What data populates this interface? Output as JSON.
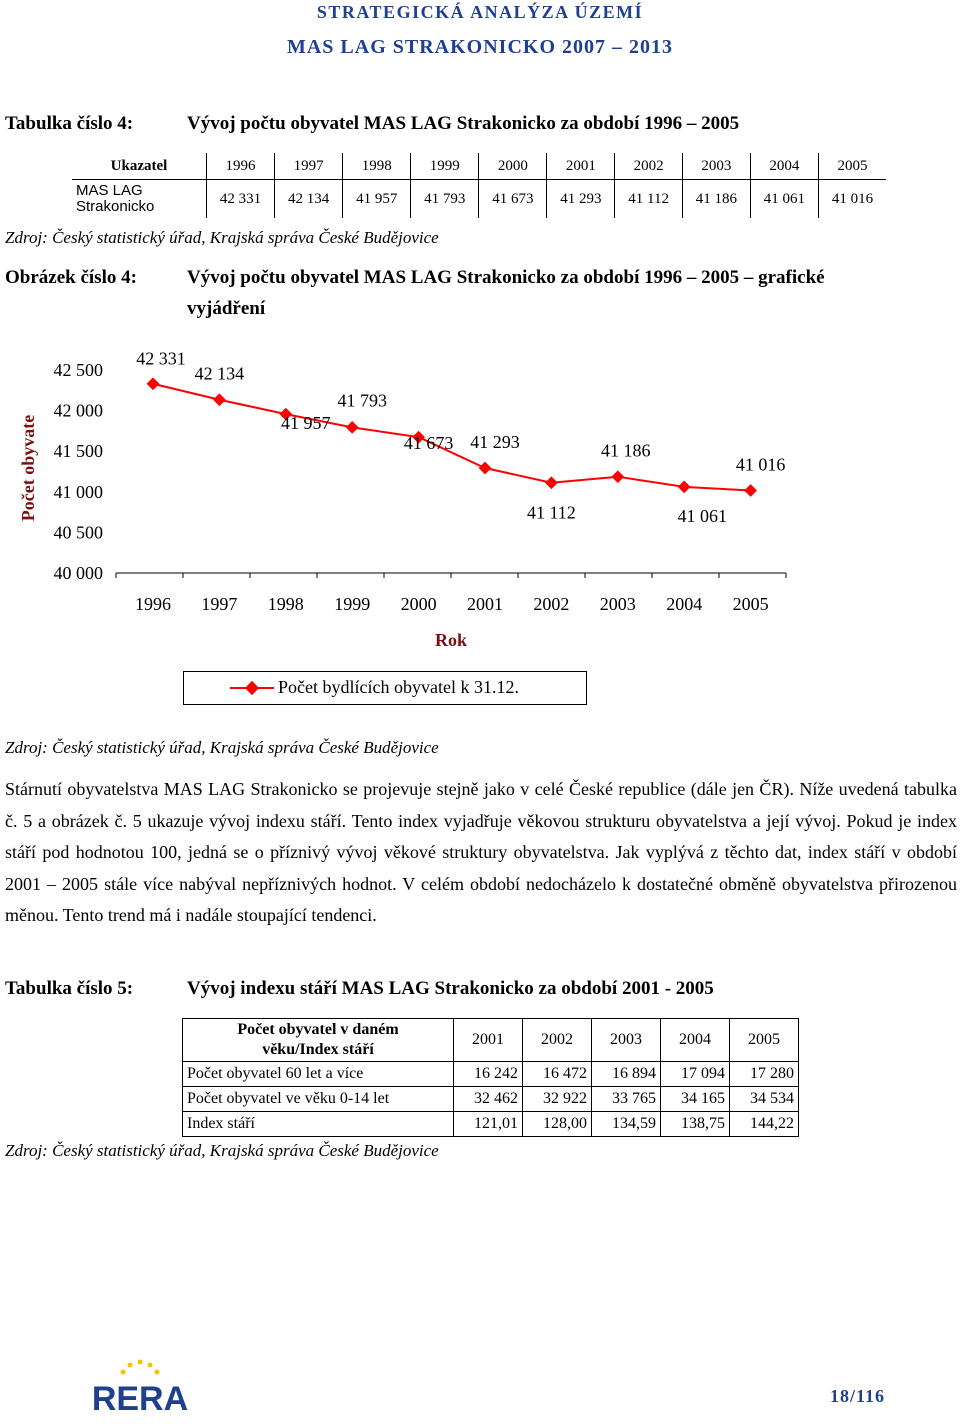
{
  "header": {
    "line1": "STRATEGICKÁ ANALÝZA ÚZEMÍ",
    "line2": "MAS LAG STRAKONICKO 2007 – 2013"
  },
  "table4": {
    "label": "Tabulka číslo 4:",
    "title": "Vývoj počtu obyvatel MAS LAG Strakonicko za období 1996 – 2005",
    "header_label": "Ukazatel",
    "years": [
      "1996",
      "1997",
      "1998",
      "1999",
      "2000",
      "2001",
      "2002",
      "2003",
      "2004",
      "2005"
    ],
    "row_label": "MAS LAG Strakonicko",
    "values": [
      "42 331",
      "42 134",
      "41 957",
      "41 793",
      "41 673",
      "41 293",
      "41 112",
      "41 186",
      "41 061",
      "41 016"
    ],
    "source": "Zdroj: Český statistický úřad, Krajská správa České Budějovice"
  },
  "figure4": {
    "label": "Obrázek číslo 4:",
    "title_line1": "Vývoj počtu obyvatel MAS LAG Strakonicko za období 1996 – 2005 – grafické",
    "title_line2": "vyjádření",
    "source": "Zdroj: Český statistický úřad, Krajská správa České Budějovice"
  },
  "chart_data": {
    "type": "line",
    "categories": [
      "1996",
      "1997",
      "1998",
      "1999",
      "2000",
      "2001",
      "2002",
      "2003",
      "2004",
      "2005"
    ],
    "series": [
      {
        "name": "Počet bydlících obyvatel k 31.12.",
        "values": [
          42331,
          42134,
          41957,
          41793,
          41673,
          41293,
          41112,
          41186,
          41061,
          41016
        ],
        "labels": [
          "42 331",
          "42 134",
          "41 957",
          "41 793",
          "41 673",
          "41 293",
          "41 112",
          "41 186",
          "41 061",
          "41 016"
        ],
        "color": "#ff0000"
      }
    ],
    "ylabel": "Počet obyvate",
    "xlabel": "Rok",
    "ylim": [
      40000,
      42500
    ],
    "yticks": [
      42500,
      42000,
      41500,
      41000,
      40500,
      40000
    ],
    "ytick_labels": [
      "42 500",
      "42 000",
      "41 500",
      "41 000",
      "40 500",
      "40 000"
    ],
    "legend_position": "bottom",
    "grid": false
  },
  "paragraph": "Stárnutí obyvatelstva MAS LAG Strakonicko se projevuje stejně jako v celé České republice (dále jen ČR). Níže uvedená tabulka č. 5 a obrázek č. 5 ukazuje vývoj indexu stáří. Tento index vyjadřuje věkovou strukturu obyvatelstva a její vývoj. Pokud je index stáří pod hodnotou 100, jedná se o příznivý vývoj věkové struktury obyvatelstva. Jak vyplývá z těchto dat, index stáří v období 2001 – 2005 stále více nabýval nepříznivých hodnot. V celém období nedocházelo k dostatečné obměně obyvatelstva přirozenou měnou. Tento trend má i nadále stoupající tendenci.",
  "table5": {
    "label": "Tabulka číslo 5:",
    "title": "Vývoj indexu stáří MAS LAG Strakonicko za období 2001 - 2005",
    "header_label_line1": "Počet obyvatel v daném",
    "header_label_line2": "věku/Index stáří",
    "years": [
      "2001",
      "2002",
      "2003",
      "2004",
      "2005"
    ],
    "rows": [
      {
        "label": "Počet obyvatel 60 let a více",
        "values": [
          "16 242",
          "16 472",
          "16 894",
          "17 094",
          "17 280"
        ]
      },
      {
        "label": "Počet obyvatel ve věku 0-14 let",
        "values": [
          "32 462",
          "32 922",
          "33 765",
          "34 165",
          "34 534"
        ]
      },
      {
        "label": "Index stáří",
        "values": [
          "121,01",
          "128,00",
          "134,59",
          "138,75",
          "144,22"
        ]
      }
    ],
    "source": "Zdroj: Český statistický úřad, Krajská správa České Budějovice"
  },
  "footer": {
    "logo_text": "RERA",
    "page_number": "18/116"
  }
}
